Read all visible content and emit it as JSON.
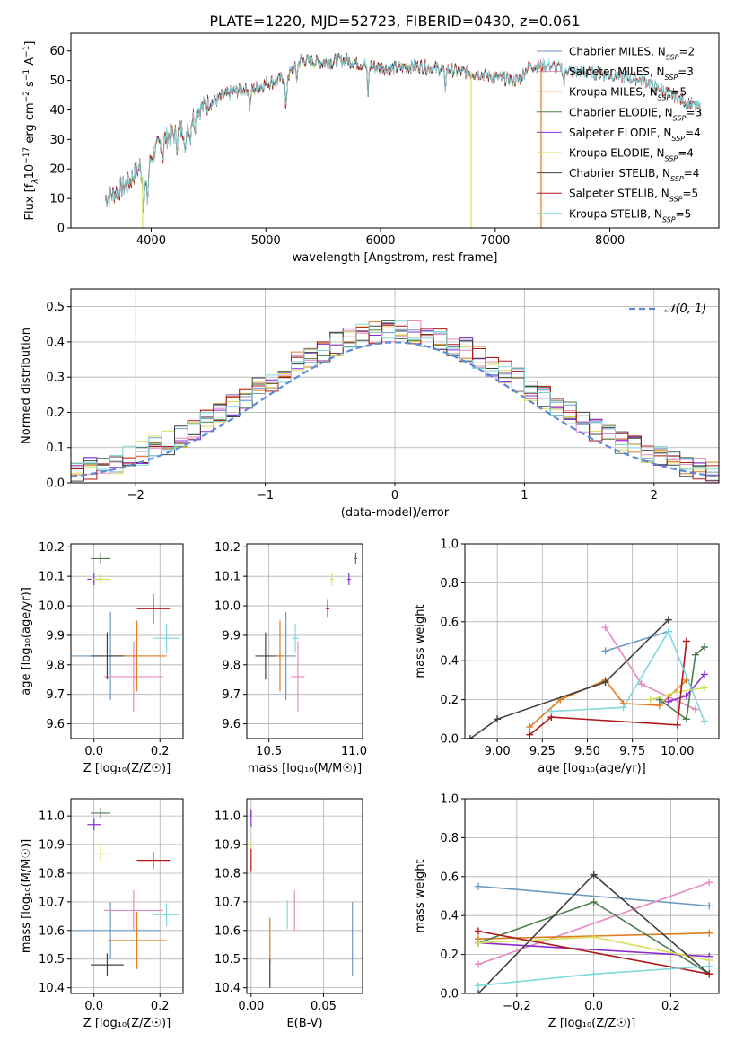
{
  "figure_title": "PLATE=1220, MJD=52723, FIBERID=0430, z=0.061",
  "colors": {
    "Chabrier MILES": "#6b9ac4",
    "Salpeter MILES": "#e589c1",
    "Kroupa MILES": "#e07b20",
    "Chabrier ELODIE": "#4e7d4e",
    "Salpeter ELODIE": "#8a2bd2",
    "Kroupa ELODIE": "#d6e05a",
    "Chabrier STELIB": "#404040",
    "Salpeter STELIB": "#b01818",
    "Kroupa STELIB": "#7fd8dc",
    "normal_curve": "#5b8bd8"
  },
  "chart_data": [
    {
      "id": "spectrum",
      "type": "line",
      "title": "",
      "xlabel": "wavelength [Angstrom, rest frame]",
      "ylabel_parts": [
        "Flux [f",
        "λ",
        "10",
        "−17",
        " erg cm",
        "−2",
        " s",
        "−1",
        " A",
        "−1",
        "]"
      ],
      "xlim": [
        3300,
        8950
      ],
      "ylim": [
        0,
        66
      ],
      "xticks": [
        4000,
        5000,
        6000,
        7000,
        8000
      ],
      "yticks": [
        0,
        10,
        20,
        30,
        40,
        50,
        60
      ],
      "grid": false,
      "legend_position": "top-right",
      "legend": [
        {
          "name": "Chabrier MILES",
          "nssp": "2"
        },
        {
          "name": "Salpeter MILES",
          "nssp": "3"
        },
        {
          "name": "Kroupa MILES",
          "nssp": "5"
        },
        {
          "name": "Chabrier ELODIE",
          "nssp": "3"
        },
        {
          "name": "Salpeter ELODIE",
          "nssp": "4"
        },
        {
          "name": "Kroupa ELODIE",
          "nssp": "4"
        },
        {
          "name": "Chabrier STELIB",
          "nssp": "4"
        },
        {
          "name": "Salpeter STELIB",
          "nssp": "5"
        },
        {
          "name": "Kroupa STELIB",
          "nssp": "5"
        }
      ],
      "nssp_sub": "SSP",
      "continuum": [
        [
          3600,
          10
        ],
        [
          3800,
          15
        ],
        [
          3900,
          21
        ],
        [
          3950,
          14
        ],
        [
          4000,
          24
        ],
        [
          4100,
          30
        ],
        [
          4200,
          32
        ],
        [
          4300,
          34
        ],
        [
          4400,
          40
        ],
        [
          4500,
          42
        ],
        [
          4600,
          44
        ],
        [
          4700,
          46
        ],
        [
          4800,
          47
        ],
        [
          4900,
          47
        ],
        [
          5000,
          49
        ],
        [
          5100,
          50
        ],
        [
          5200,
          52
        ],
        [
          5300,
          57
        ],
        [
          5500,
          56
        ],
        [
          5700,
          57
        ],
        [
          5900,
          55
        ],
        [
          6100,
          54
        ],
        [
          6300,
          55
        ],
        [
          6500,
          54
        ],
        [
          6700,
          53
        ],
        [
          6900,
          52
        ],
        [
          7000,
          51
        ],
        [
          7200,
          50
        ],
        [
          7300,
          55
        ],
        [
          7500,
          55
        ],
        [
          7700,
          53
        ],
        [
          8000,
          52
        ],
        [
          8300,
          50
        ],
        [
          8500,
          46
        ],
        [
          8800,
          40
        ]
      ],
      "absorption_lines": [
        [
          3933,
          8
        ],
        [
          3968,
          8
        ],
        [
          4102,
          6
        ],
        [
          4226,
          4
        ],
        [
          4300,
          10
        ],
        [
          4340,
          6
        ],
        [
          4383,
          4
        ],
        [
          4861,
          6
        ],
        [
          5175,
          12
        ],
        [
          5270,
          5
        ],
        [
          5890,
          10
        ],
        [
          6563,
          6
        ],
        [
          7600,
          6
        ]
      ],
      "glitches": [
        {
          "x": 3925,
          "color": "Kroupa ELODIE"
        },
        {
          "x": 6790,
          "color": "Kroupa ELODIE"
        },
        {
          "x": 7400,
          "color": "Kroupa MILES"
        }
      ]
    },
    {
      "id": "residual-histogram",
      "type": "histogram",
      "xlabel": "(data-model)/error",
      "ylabel": "Normed distribution",
      "xlim": [
        -2.5,
        2.5
      ],
      "ylim": [
        0,
        0.55
      ],
      "xticks": [
        -2,
        -1,
        0,
        1,
        2
      ],
      "yticks": [
        0.0,
        0.1,
        0.2,
        0.3,
        0.4,
        0.5
      ],
      "grid": true,
      "legend_position": "top-right",
      "legend_label": "𝒩(0, 1)",
      "bin_width": 0.1,
      "bin_start": -2.5
    },
    {
      "id": "age-vs-z",
      "type": "errorbar",
      "xlabel": "Z [log₁₀(Z/Z☉)]",
      "ylabel": "age  [log₁₀(age/yr)]",
      "xlim": [
        -0.07,
        0.27
      ],
      "ylim": [
        9.55,
        10.21
      ],
      "xticks": [
        0.0,
        0.2
      ],
      "yticks": [
        9.6,
        9.7,
        9.8,
        9.9,
        10.0,
        10.1,
        10.2
      ],
      "grid": true,
      "points": [
        {
          "model": "Chabrier MILES",
          "x": 0.05,
          "y": 9.83,
          "xerr": 0.15,
          "yerr": 0.15
        },
        {
          "model": "Salpeter MILES",
          "x": 0.12,
          "y": 9.76,
          "xerr": 0.09,
          "yerr": 0.12
        },
        {
          "model": "Kroupa MILES",
          "x": 0.13,
          "y": 9.83,
          "xerr": 0.09,
          "yerr": 0.12
        },
        {
          "model": "Chabrier ELODIE",
          "x": 0.02,
          "y": 10.16,
          "xerr": 0.03,
          "yerr": 0.02
        },
        {
          "model": "Salpeter ELODIE",
          "x": 0.0,
          "y": 10.09,
          "xerr": 0.02,
          "yerr": 0.02
        },
        {
          "model": "Kroupa ELODIE",
          "x": 0.02,
          "y": 10.09,
          "xerr": 0.03,
          "yerr": 0.02
        },
        {
          "model": "Chabrier STELIB",
          "x": 0.04,
          "y": 9.83,
          "xerr": 0.05,
          "yerr": 0.08
        },
        {
          "model": "Salpeter STELIB",
          "x": 0.18,
          "y": 9.99,
          "xerr": 0.05,
          "yerr": 0.05
        },
        {
          "model": "Kroupa STELIB",
          "x": 0.22,
          "y": 9.89,
          "xerr": 0.04,
          "yerr": 0.05
        }
      ]
    },
    {
      "id": "age-vs-mass",
      "type": "errorbar",
      "xlabel": "mass [log₁₀(M/M☉)]",
      "ylabel": "",
      "xlim": [
        10.37,
        11.05
      ],
      "ylim": [
        9.55,
        10.21
      ],
      "xticks": [
        10.5,
        11.0
      ],
      "yticks": [
        9.6,
        9.7,
        9.8,
        9.9,
        10.0,
        10.1,
        10.2
      ],
      "grid": true,
      "points": [
        {
          "model": "Chabrier MILES",
          "x": 10.6,
          "y": 9.83,
          "xerr": 0.06,
          "yerr": 0.15
        },
        {
          "model": "Salpeter MILES",
          "x": 10.67,
          "y": 9.76,
          "xerr": 0.04,
          "yerr": 0.12
        },
        {
          "model": "Kroupa MILES",
          "x": 10.565,
          "y": 9.83,
          "xerr": 0.02,
          "yerr": 0.12
        },
        {
          "model": "Chabrier ELODIE",
          "x": 11.01,
          "y": 10.16,
          "xerr": 0.01,
          "yerr": 0.02
        },
        {
          "model": "Salpeter ELODIE",
          "x": 10.97,
          "y": 10.09,
          "xerr": 0.01,
          "yerr": 0.02
        },
        {
          "model": "Kroupa ELODIE",
          "x": 10.87,
          "y": 10.09,
          "xerr": 0.01,
          "yerr": 0.02
        },
        {
          "model": "Chabrier STELIB",
          "x": 10.48,
          "y": 9.83,
          "xerr": 0.06,
          "yerr": 0.08
        },
        {
          "model": "Salpeter STELIB",
          "x": 10.845,
          "y": 9.99,
          "xerr": 0.01,
          "yerr": 0.03
        },
        {
          "model": "Kroupa STELIB",
          "x": 10.655,
          "y": 9.89,
          "xerr": 0.02,
          "yerr": 0.05
        }
      ]
    },
    {
      "id": "mass-weight-vs-age",
      "type": "line",
      "xlabel": "age  [log₁₀(age/yr)]",
      "ylabel": "mass weight",
      "xlim": [
        8.82,
        10.23
      ],
      "ylim": [
        0,
        1
      ],
      "xticks": [
        9.0,
        9.25,
        9.5,
        9.75,
        10.0
      ],
      "yticks": [
        0.0,
        0.2,
        0.4,
        0.6,
        0.8,
        1.0
      ],
      "grid": true,
      "series": [
        {
          "model": "Chabrier MILES",
          "points": [
            [
              9.6,
              0.45
            ],
            [
              9.95,
              0.55
            ]
          ]
        },
        {
          "model": "Salpeter MILES",
          "points": [
            [
              9.6,
              0.57
            ],
            [
              9.8,
              0.28
            ],
            [
              10.1,
              0.15
            ]
          ]
        },
        {
          "model": "Kroupa MILES",
          "points": [
            [
              9.18,
              0.06
            ],
            [
              9.35,
              0.2
            ],
            [
              9.6,
              0.3
            ],
            [
              9.7,
              0.18
            ],
            [
              9.9,
              0.17
            ],
            [
              10.05,
              0.3
            ]
          ]
        },
        {
          "model": "Chabrier ELODIE",
          "points": [
            [
              9.9,
              0.2
            ],
            [
              10.05,
              0.1
            ],
            [
              10.1,
              0.43
            ],
            [
              10.15,
              0.47
            ]
          ]
        },
        {
          "model": "Salpeter ELODIE",
          "points": [
            [
              9.95,
              0.19
            ],
            [
              10.05,
              0.22
            ],
            [
              10.15,
              0.33
            ]
          ]
        },
        {
          "model": "Kroupa ELODIE",
          "points": [
            [
              9.85,
              0.2
            ],
            [
              10.0,
              0.24
            ],
            [
              10.15,
              0.26
            ]
          ]
        },
        {
          "model": "Chabrier STELIB",
          "points": [
            [
              8.85,
              0.0
            ],
            [
              9.0,
              0.1
            ],
            [
              9.6,
              0.29
            ],
            [
              9.95,
              0.61
            ]
          ]
        },
        {
          "model": "Salpeter STELIB",
          "points": [
            [
              9.18,
              0.02
            ],
            [
              9.3,
              0.11
            ],
            [
              10.0,
              0.07
            ],
            [
              10.05,
              0.5
            ]
          ]
        },
        {
          "model": "Kroupa STELIB",
          "points": [
            [
              9.3,
              0.14
            ],
            [
              9.7,
              0.16
            ],
            [
              9.95,
              0.55
            ],
            [
              10.15,
              0.09
            ]
          ]
        }
      ]
    },
    {
      "id": "mass-vs-z",
      "type": "errorbar",
      "xlabel": "Z [log₁₀(Z/Z☉)]",
      "ylabel": "mass [log₁₀(M/M☉)]",
      "xlim": [
        -0.07,
        0.27
      ],
      "ylim": [
        10.38,
        11.06
      ],
      "xticks": [
        0.0,
        0.2
      ],
      "yticks": [
        10.4,
        10.5,
        10.6,
        10.7,
        10.8,
        10.9,
        11.0
      ],
      "grid": true,
      "points": [
        {
          "model": "Chabrier MILES",
          "x": 0.05,
          "y": 10.6,
          "xerr": 0.15,
          "yerr": 0.1
        },
        {
          "model": "Salpeter MILES",
          "x": 0.12,
          "y": 10.67,
          "xerr": 0.09,
          "yerr": 0.07
        },
        {
          "model": "Kroupa MILES",
          "x": 0.13,
          "y": 10.565,
          "xerr": 0.09,
          "yerr": 0.1
        },
        {
          "model": "Chabrier ELODIE",
          "x": 0.02,
          "y": 11.01,
          "xerr": 0.03,
          "yerr": 0.02
        },
        {
          "model": "Salpeter ELODIE",
          "x": 0.0,
          "y": 10.97,
          "xerr": 0.02,
          "yerr": 0.02
        },
        {
          "model": "Kroupa ELODIE",
          "x": 0.02,
          "y": 10.87,
          "xerr": 0.03,
          "yerr": 0.03
        },
        {
          "model": "Chabrier STELIB",
          "x": 0.04,
          "y": 10.48,
          "xerr": 0.05,
          "yerr": 0.04
        },
        {
          "model": "Salpeter STELIB",
          "x": 0.18,
          "y": 10.845,
          "xerr": 0.05,
          "yerr": 0.03
        },
        {
          "model": "Kroupa STELIB",
          "x": 0.22,
          "y": 10.655,
          "xerr": 0.04,
          "yerr": 0.04
        }
      ]
    },
    {
      "id": "mass-vs-ebv",
      "type": "errorbar",
      "xlabel": "E(B-V)",
      "ylabel": "",
      "xlim": [
        -0.003,
        0.077
      ],
      "ylim": [
        10.38,
        11.06
      ],
      "xticks": [
        0.0,
        0.05
      ],
      "yticks": [
        10.4,
        10.5,
        10.6,
        10.7,
        10.8,
        10.9,
        11.0
      ],
      "grid": true,
      "points": [
        {
          "model": "Chabrier MILES",
          "x": 0.07,
          "y": 10.57,
          "xerr": 0,
          "yerr": 0.13
        },
        {
          "model": "Salpeter MILES",
          "x": 0.03,
          "y": 10.67,
          "xerr": 0,
          "yerr": 0.07
        },
        {
          "model": "Kroupa MILES",
          "x": 0.013,
          "y": 10.565,
          "xerr": 0,
          "yerr": 0.08
        },
        {
          "model": "Chabrier ELODIE",
          "x": 0.0,
          "y": 11.01,
          "xerr": 0,
          "yerr": 0.01
        },
        {
          "model": "Salpeter ELODIE",
          "x": 0.0,
          "y": 10.99,
          "xerr": 0,
          "yerr": 0.03
        },
        {
          "model": "Kroupa ELODIE",
          "x": 0.0,
          "y": 10.89,
          "xerr": 0,
          "yerr": 0.02
        },
        {
          "model": "Chabrier STELIB",
          "x": 0.013,
          "y": 10.45,
          "xerr": 0,
          "yerr": 0.05
        },
        {
          "model": "Salpeter STELIB",
          "x": 0.0,
          "y": 10.845,
          "xerr": 0,
          "yerr": 0.04
        },
        {
          "model": "Kroupa STELIB",
          "x": 0.025,
          "y": 10.655,
          "xerr": 0,
          "yerr": 0.05
        }
      ]
    },
    {
      "id": "mass-weight-vs-z",
      "type": "line",
      "xlabel": "Z [log₁₀(Z/Z☉)]",
      "ylabel": "mass weight",
      "xlim": [
        -0.335,
        0.325
      ],
      "ylim": [
        0,
        1
      ],
      "xticks": [
        -0.2,
        0.0,
        0.2
      ],
      "yticks": [
        0.0,
        0.2,
        0.4,
        0.6,
        0.8,
        1.0
      ],
      "grid": true,
      "series": [
        {
          "model": "Chabrier MILES",
          "points": [
            [
              -0.3,
              0.55
            ],
            [
              0.3,
              0.45
            ]
          ]
        },
        {
          "model": "Salpeter MILES",
          "points": [
            [
              -0.3,
              0.15
            ],
            [
              0.3,
              0.57
            ]
          ]
        },
        {
          "model": "Kroupa MILES",
          "points": [
            [
              -0.3,
              0.28
            ],
            [
              0.3,
              0.31
            ]
          ]
        },
        {
          "model": "Chabrier ELODIE",
          "points": [
            [
              -0.3,
              0.26
            ],
            [
              0.0,
              0.47
            ],
            [
              0.3,
              0.1
            ]
          ]
        },
        {
          "model": "Salpeter ELODIE",
          "points": [
            [
              -0.3,
              0.26
            ],
            [
              0.3,
              0.19
            ]
          ]
        },
        {
          "model": "Kroupa ELODIE",
          "points": [
            [
              -0.3,
              0.26
            ],
            [
              0.0,
              0.29
            ],
            [
              0.3,
              0.17
            ]
          ]
        },
        {
          "model": "Chabrier STELIB",
          "points": [
            [
              -0.3,
              0.0
            ],
            [
              0.0,
              0.61
            ],
            [
              0.3,
              0.1
            ]
          ]
        },
        {
          "model": "Salpeter STELIB",
          "points": [
            [
              -0.3,
              0.32
            ],
            [
              0.3,
              0.1
            ]
          ]
        },
        {
          "model": "Kroupa STELIB",
          "points": [
            [
              -0.3,
              0.04
            ],
            [
              0.0,
              0.1
            ],
            [
              0.3,
              0.14
            ]
          ]
        }
      ]
    }
  ]
}
